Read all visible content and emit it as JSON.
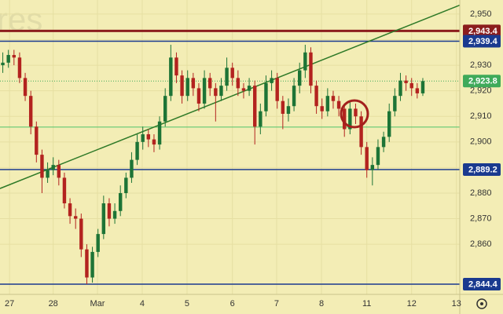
{
  "chart_data": {
    "type": "candlestick",
    "watermark": "res",
    "background": "#f3edb5",
    "up_color": "#1d7436",
    "down_color": "#b3231f",
    "grid": true,
    "xlim": [
      0,
      82.1
    ],
    "ylim": [
      2840.4,
      2955.5
    ],
    "yticks": [
      {
        "value": 2860,
        "label": "2,860"
      },
      {
        "value": 2870,
        "label": "2,870"
      },
      {
        "value": 2880,
        "label": "2,880"
      },
      {
        "value": 2890,
        "label": "2,890"
      },
      {
        "value": 2900,
        "label": "2,900"
      },
      {
        "value": 2910,
        "label": "2,910"
      },
      {
        "value": 2920,
        "label": "2,920"
      },
      {
        "value": 2930,
        "label": "2,930"
      },
      {
        "value": 2940,
        "label": "2,940"
      },
      {
        "value": 2950,
        "label": "2,950"
      }
    ],
    "xticks": [
      {
        "value": 1.7,
        "label": "27"
      },
      {
        "value": 9.5,
        "label": "28"
      },
      {
        "value": 17.4,
        "label": "Mar"
      },
      {
        "value": 25.4,
        "label": "4"
      },
      {
        "value": 33.4,
        "label": "5"
      },
      {
        "value": 41.5,
        "label": "6"
      },
      {
        "value": 49.4,
        "label": "7"
      },
      {
        "value": 57.4,
        "label": "8"
      },
      {
        "value": 65.5,
        "label": "11"
      },
      {
        "value": 73.5,
        "label": "12"
      },
      {
        "value": 81.5,
        "label": "13"
      }
    ],
    "open": [
      2930,
      2931,
      2934,
      2933,
      2925,
      2918,
      2906,
      2895,
      2886,
      2889,
      2891,
      2886,
      2876,
      2871,
      2870,
      2858,
      2847,
      2857,
      2864,
      2876,
      2870,
      2873,
      2880,
      2886,
      2893,
      2900,
      2903,
      2901,
      2899,
      2908,
      2918,
      2933,
      2926,
      2918,
      2925,
      2921,
      2915,
      2925,
      2921,
      2918,
      2922,
      2929,
      2925,
      2921,
      2920,
      2922,
      2906,
      2912,
      2923,
      2925,
      2916,
      2911,
      2914,
      2922,
      2928,
      2935,
      2922,
      2914,
      2912,
      2918,
      2916,
      2913,
      2905,
      2913,
      2910,
      2898,
      2889,
      2891,
      2898,
      2902,
      2912,
      2918,
      2924,
      2923,
      2921,
      2919
    ],
    "high": [
      2935,
      2936,
      2936,
      2935,
      2927,
      2920,
      2908,
      2897,
      2892,
      2894,
      2893,
      2888,
      2878,
      2874,
      2872,
      2860,
      2859,
      2866,
      2879,
      2878,
      2876,
      2883,
      2888,
      2896,
      2903,
      2906,
      2905,
      2903,
      2910,
      2921,
      2938,
      2935,
      2928,
      2928,
      2927,
      2923,
      2928,
      2927,
      2923,
      2925,
      2933,
      2931,
      2928,
      2923,
      2925,
      2924,
      2915,
      2926,
      2928,
      2927,
      2918,
      2917,
      2925,
      2931,
      2938,
      2937,
      2924,
      2917,
      2921,
      2920,
      2918,
      2915,
      2916,
      2915,
      2912,
      2900,
      2894,
      2901,
      2904,
      2915,
      2921,
      2927,
      2926,
      2925,
      2923,
      2925
    ],
    "low": [
      2927,
      2929,
      2930,
      2923,
      2916,
      2903,
      2892,
      2880,
      2884,
      2887,
      2883,
      2874,
      2868,
      2866,
      2855,
      2844.4,
      2845,
      2855,
      2862,
      2867,
      2868,
      2871,
      2878,
      2884,
      2891,
      2897,
      2898,
      2896,
      2897,
      2906,
      2916,
      2923,
      2915,
      2916,
      2918,
      2912,
      2913,
      2918,
      2908,
      2916,
      2920,
      2922,
      2918,
      2917,
      2918,
      2899,
      2903,
      2910,
      2920,
      2913,
      2905,
      2908,
      2912,
      2919,
      2925,
      2919,
      2911,
      2909,
      2910,
      2913,
      2910,
      2902,
      2903,
      2907,
      2895,
      2886,
      2883,
      2889,
      2896,
      2900,
      2910,
      2916,
      2920,
      2918,
      2917,
      2918
    ],
    "close": [
      2931,
      2934,
      2933,
      2925,
      2918,
      2906,
      2895,
      2886,
      2889,
      2891,
      2886,
      2876,
      2871,
      2870,
      2858,
      2847,
      2857,
      2864,
      2876,
      2870,
      2873,
      2880,
      2886,
      2893,
      2900,
      2903,
      2901,
      2899,
      2908,
      2918,
      2933,
      2926,
      2918,
      2925,
      2921,
      2915,
      2925,
      2921,
      2918,
      2922,
      2929,
      2925,
      2921,
      2920,
      2922,
      2906,
      2912,
      2923,
      2925,
      2916,
      2911,
      2914,
      2922,
      2928,
      2935,
      2922,
      2914,
      2912,
      2918,
      2916,
      2913,
      2905,
      2913,
      2910,
      2898,
      2889,
      2891,
      2898,
      2902,
      2912,
      2918,
      2924,
      2923,
      2921,
      2919,
      2923.8
    ],
    "levels": [
      {
        "value": 2943.4,
        "label": "2,943.4",
        "color": "#8b1d1d"
      },
      {
        "value": 2939.4,
        "label": "2,939.4",
        "color": "#1a3a8f"
      },
      {
        "value": 2889.2,
        "label": "2,889.2",
        "color": "#1a3a8f"
      },
      {
        "value": 2844.4,
        "label": "2,844.4",
        "color": "#1a3a8f"
      },
      {
        "value": 2905.8,
        "color": "#4fc36a"
      }
    ],
    "last": {
      "value": 2923.8,
      "label": "2,923.8",
      "color": "#3faa5a"
    },
    "trendline": {
      "x": [
        0,
        82.1
      ],
      "y": [
        2881.8,
        2953.5
      ],
      "color": "#2f7a28"
    }
  }
}
